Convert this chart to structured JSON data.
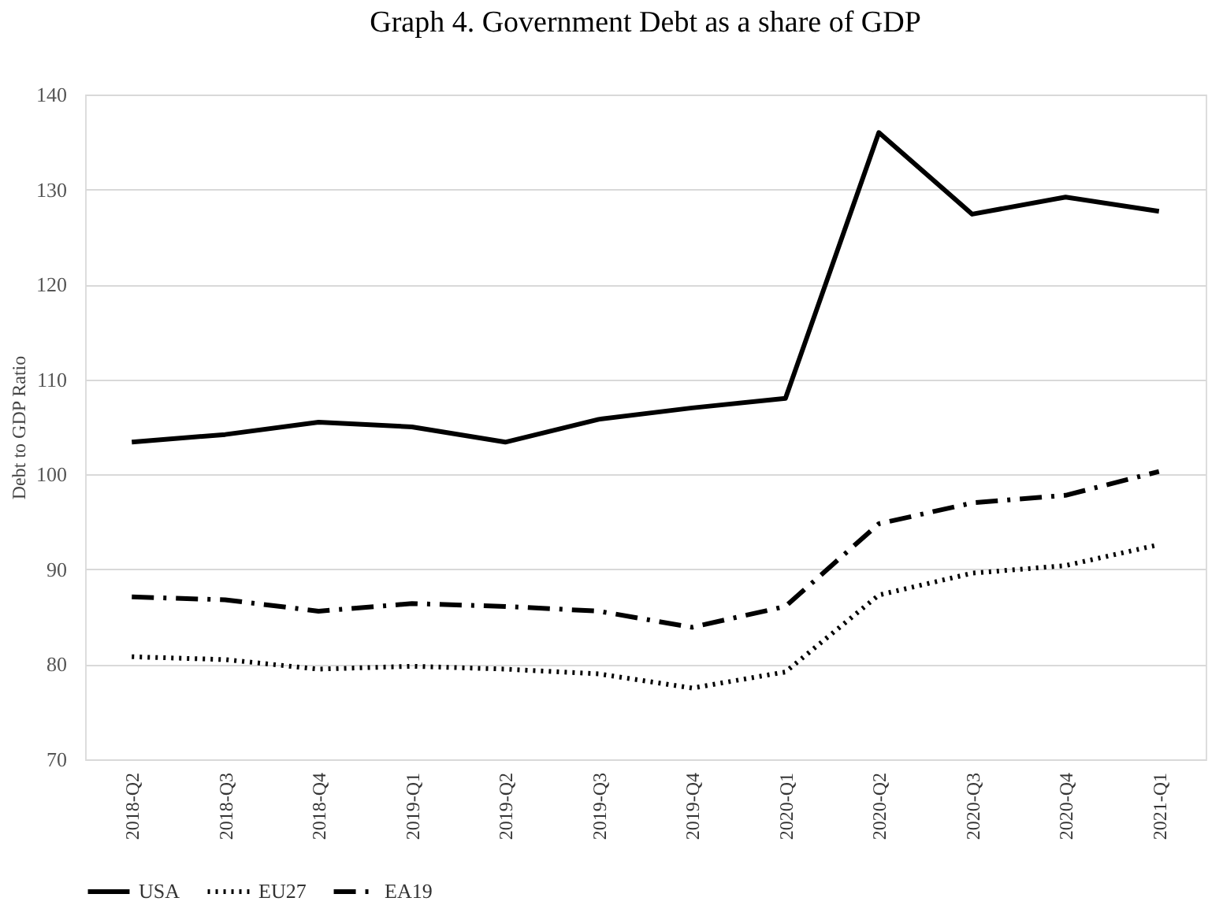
{
  "chart_data": {
    "type": "line",
    "title": "Graph 4. Government Debt as a share of GDP",
    "ylabel": "Debt to GDP Ratio",
    "categories": [
      "2018-Q2",
      "2018-Q3",
      "2018-Q4",
      "2019-Q1",
      "2019-Q2",
      "2019-Q3",
      "2019-Q4",
      "2020-Q1",
      "2020-Q2",
      "2020-Q3",
      "2020-Q4",
      "2021-Q1"
    ],
    "series": [
      {
        "name": "USA",
        "color": "#000000",
        "line_style": "solid",
        "values": [
          103.4,
          104.2,
          105.5,
          105.0,
          103.4,
          105.8,
          107.0,
          108.0,
          136.0,
          127.4,
          129.2,
          127.7
        ]
      },
      {
        "name": "EU27",
        "color": "#000000",
        "line_style": "dotted",
        "values": [
          80.8,
          80.5,
          79.5,
          79.8,
          79.5,
          79.0,
          77.5,
          79.2,
          87.3,
          89.6,
          90.4,
          92.6
        ]
      },
      {
        "name": "EA19",
        "color": "#000000",
        "line_style": "dashed",
        "values": [
          87.1,
          86.8,
          85.6,
          86.4,
          86.1,
          85.6,
          83.9,
          86.1,
          94.8,
          97.0,
          97.8,
          100.3
        ]
      }
    ],
    "ylim": [
      70,
      140
    ],
    "yticks": [
      70,
      80,
      90,
      100,
      110,
      120,
      130,
      140
    ],
    "grid": "y",
    "legend": "bottom",
    "marker": "none"
  }
}
